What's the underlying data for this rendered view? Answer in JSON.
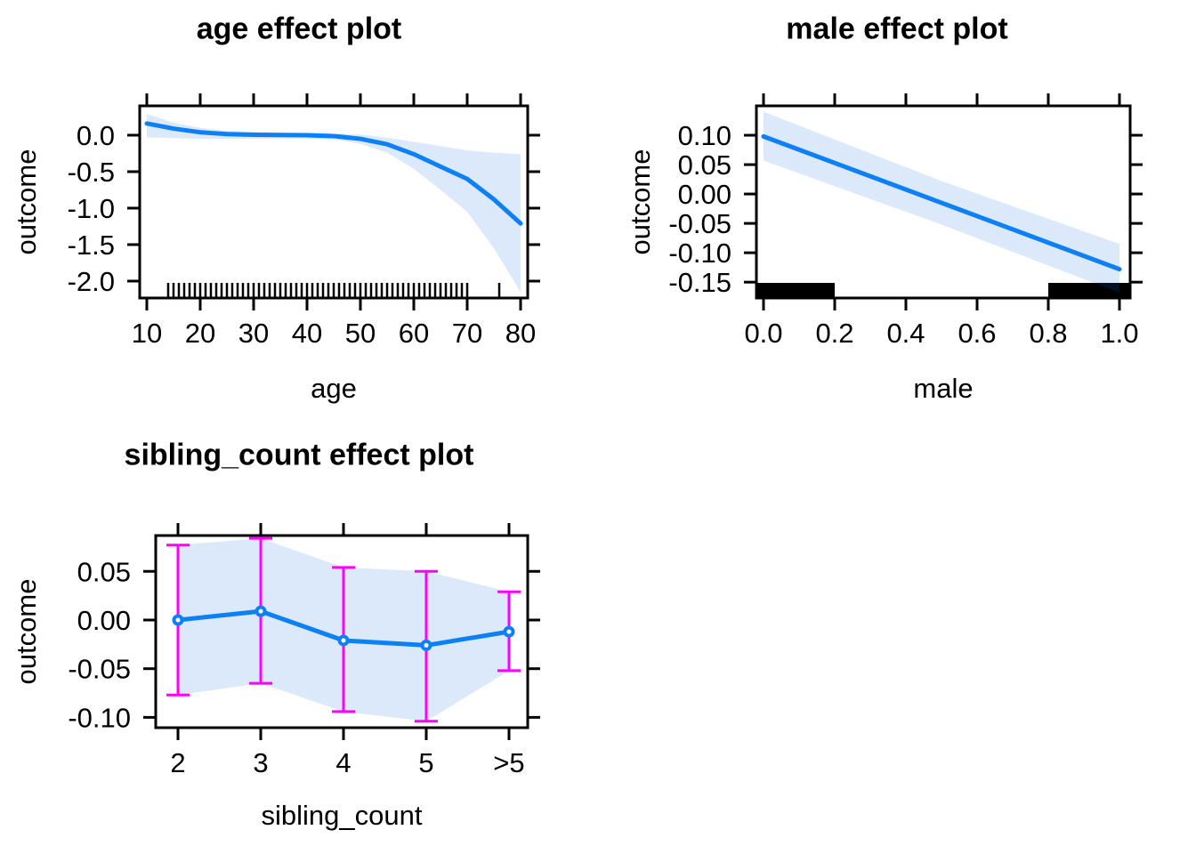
{
  "figure": {
    "background": "#FFFFFF"
  },
  "colors": {
    "fit_line": "#0D80F6",
    "confidence_band": "rgba(13,107,220,0.15)",
    "error_bar": "#FF00FF",
    "marker_stroke": "#0D80F6",
    "marker_fill": "#FFFFFF",
    "rug": "#000000",
    "axis": "#000000",
    "text": "#000000"
  },
  "chart_data": [
    {
      "id": "age",
      "type": "line",
      "title": "age effect plot",
      "xlabel": "age",
      "ylabel": "outcome",
      "xlim": [
        8.67,
        81.33
      ],
      "ylim": [
        -2.232,
        0.402
      ],
      "xticks": {
        "values": [
          10,
          20,
          30,
          40,
          50,
          60,
          70,
          80
        ],
        "labels": [
          "10",
          "20",
          "30",
          "40",
          "50",
          "60",
          "70",
          "80"
        ]
      },
      "yticks": {
        "values": [
          0.0,
          -0.5,
          -1.0,
          -1.5,
          -2.0
        ],
        "labels": [
          "0.0",
          "-0.5",
          "-1.0",
          "-1.5",
          "-2.0"
        ]
      },
      "x": [
        10,
        15,
        20,
        25,
        30,
        35,
        40,
        45,
        50,
        55,
        60,
        65,
        70,
        75,
        80
      ],
      "fit": [
        0.16,
        0.09,
        0.04,
        0.015,
        0.005,
        0.002,
        0.0,
        -0.012,
        -0.05,
        -0.125,
        -0.26,
        -0.43,
        -0.6,
        -0.88,
        -1.21
      ],
      "upper": [
        0.29,
        0.17,
        0.1,
        0.06,
        0.045,
        0.035,
        0.03,
        0.02,
        0.01,
        -0.035,
        -0.09,
        -0.15,
        -0.21,
        -0.24,
        -0.26
      ],
      "lower": [
        -0.03,
        -0.04,
        -0.05,
        -0.05,
        -0.05,
        -0.045,
        -0.045,
        -0.055,
        -0.12,
        -0.24,
        -0.46,
        -0.75,
        -1.05,
        -1.55,
        -2.15
      ],
      "rug": [
        14,
        15,
        16,
        17,
        18,
        19,
        20,
        21,
        22,
        23,
        24,
        25,
        26,
        27,
        28,
        29,
        30,
        31,
        32,
        33,
        34,
        35,
        36,
        37,
        38,
        39,
        40,
        41,
        42,
        43,
        44,
        45,
        46,
        47,
        48,
        49,
        50,
        51,
        52,
        53,
        54,
        55,
        56,
        57,
        58,
        59,
        60,
        61,
        62,
        63,
        64,
        65,
        66,
        67,
        68,
        69,
        70,
        76
      ]
    },
    {
      "id": "male",
      "type": "line",
      "title": "male effect plot",
      "xlabel": "male",
      "ylabel": "outcome",
      "xlim": [
        -0.02,
        1.03
      ],
      "ylim": [
        -0.177,
        0.15
      ],
      "xticks": {
        "values": [
          0.0,
          0.2,
          0.4,
          0.6,
          0.8,
          1.0
        ],
        "labels": [
          "0.0",
          "0.2",
          "0.4",
          "0.6",
          "0.8",
          "1.0"
        ]
      },
      "yticks": {
        "values": [
          0.1,
          0.05,
          0.0,
          -0.05,
          -0.1,
          -0.15
        ],
        "labels": [
          "0.10",
          "0.05",
          "0.00",
          "-0.05",
          "-0.10",
          "-0.15"
        ]
      },
      "x": [
        0.0,
        0.5,
        1.0
      ],
      "fit": [
        0.098,
        -0.015,
        -0.128
      ],
      "upper": [
        0.14,
        0.022,
        -0.085
      ],
      "lower": [
        0.057,
        -0.052,
        -0.168
      ],
      "rug_blocks": [
        {
          "from": -0.02,
          "to": 0.2
        },
        {
          "from": 0.8,
          "to": 1.03
        }
      ]
    },
    {
      "id": "sibling_count",
      "type": "line-errorbar",
      "title": "sibling_count effect plot",
      "xlabel": "sibling_count",
      "ylabel": "outcome",
      "categories": [
        "2",
        "3",
        "4",
        "5",
        ">5"
      ],
      "xlim": [
        -0.269,
        4.226
      ],
      "ylim": [
        -0.1106,
        0.0868
      ],
      "yticks": {
        "values": [
          0.05,
          0.0,
          -0.05,
          -0.1
        ],
        "labels": [
          "0.05",
          "0.00",
          "-0.05",
          "-0.10"
        ]
      },
      "x": [
        0,
        1,
        2,
        3,
        4
      ],
      "fit": [
        0.0,
        0.009,
        -0.021,
        -0.026,
        -0.012
      ],
      "upper": [
        0.077,
        0.084,
        0.054,
        0.05,
        0.029
      ],
      "lower": [
        -0.077,
        -0.065,
        -0.094,
        -0.104,
        -0.052
      ]
    }
  ]
}
